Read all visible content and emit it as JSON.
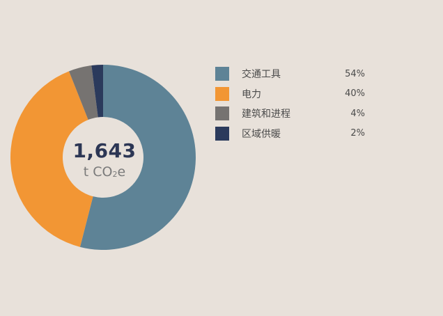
{
  "chart_data": {
    "type": "pie",
    "categories": [
      "交通工具",
      "电力",
      "建筑和进程",
      "区域供暖"
    ],
    "values": [
      54,
      40,
      4,
      2
    ],
    "labels": [
      "54%",
      "40%",
      "4%",
      "2%"
    ],
    "colors": [
      "#5e8396",
      "#f29634",
      "#767371",
      "#2b3a5c"
    ],
    "center_value": "1,643",
    "center_unit": "t CO",
    "center_unit_sub": "2",
    "center_unit_suffix": "e",
    "legend_position": "right"
  }
}
